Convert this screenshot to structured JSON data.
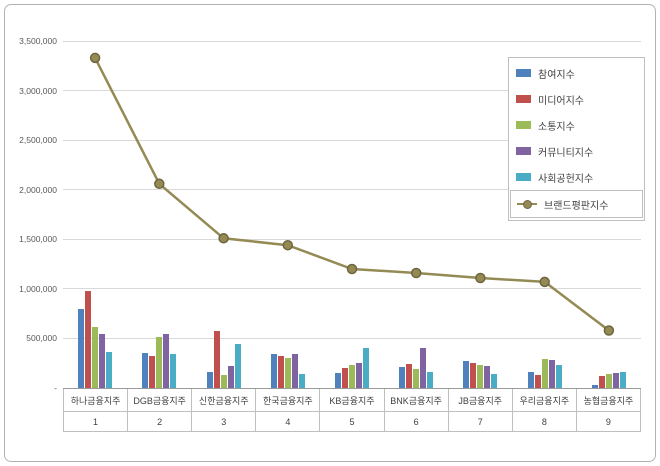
{
  "chart_data": {
    "type": "bar",
    "title": "",
    "categories": [
      "하나금융지주",
      "DGB금융지주",
      "신한금융지주",
      "한국금융지주",
      "KB금융지주",
      "BNK금융지주",
      "JB금융지주",
      "우리금융지주",
      "농협금융지주"
    ],
    "category_numbers": [
      "1",
      "2",
      "3",
      "4",
      "5",
      "6",
      "7",
      "8",
      "9"
    ],
    "series": [
      {
        "name": "참여지수",
        "type": "bar",
        "color": "#4f81bd",
        "values": [
          800000,
          350000,
          160000,
          340000,
          150000,
          210000,
          270000,
          160000,
          30000
        ]
      },
      {
        "name": "미디어지수",
        "type": "bar",
        "color": "#c0504d",
        "values": [
          980000,
          320000,
          580000,
          320000,
          200000,
          240000,
          250000,
          130000,
          120000
        ]
      },
      {
        "name": "소통지수",
        "type": "bar",
        "color": "#9bbb59",
        "values": [
          620000,
          510000,
          130000,
          300000,
          230000,
          190000,
          230000,
          290000,
          140000
        ]
      },
      {
        "name": "커뮤니티지수",
        "type": "bar",
        "color": "#8064a2",
        "values": [
          540000,
          540000,
          220000,
          340000,
          250000,
          400000,
          220000,
          280000,
          150000
        ]
      },
      {
        "name": "사회공헌지수",
        "type": "bar",
        "color": "#4bacc6",
        "values": [
          360000,
          340000,
          440000,
          140000,
          400000,
          160000,
          140000,
          230000,
          160000
        ]
      },
      {
        "name": "브랜드평판지수",
        "type": "line",
        "color": "#948a54",
        "marker_stroke": "#6f6640",
        "values": [
          3330000,
          2060000,
          1510000,
          1440000,
          1200000,
          1160000,
          1110000,
          1070000,
          580000
        ]
      }
    ],
    "ylim": [
      0,
      3500000
    ],
    "yticks": [
      {
        "v": 0,
        "label": "-"
      },
      {
        "v": 500000,
        "label": "500,000"
      },
      {
        "v": 1000000,
        "label": "1,000,000"
      },
      {
        "v": 1500000,
        "label": "1,500,000"
      },
      {
        "v": 2000000,
        "label": "2,000,000"
      },
      {
        "v": 2500000,
        "label": "2,500,000"
      },
      {
        "v": 3000000,
        "label": "3,000,000"
      },
      {
        "v": 3500000,
        "label": "3,500,000"
      }
    ],
    "grid": true,
    "legend_position": "top-right"
  }
}
